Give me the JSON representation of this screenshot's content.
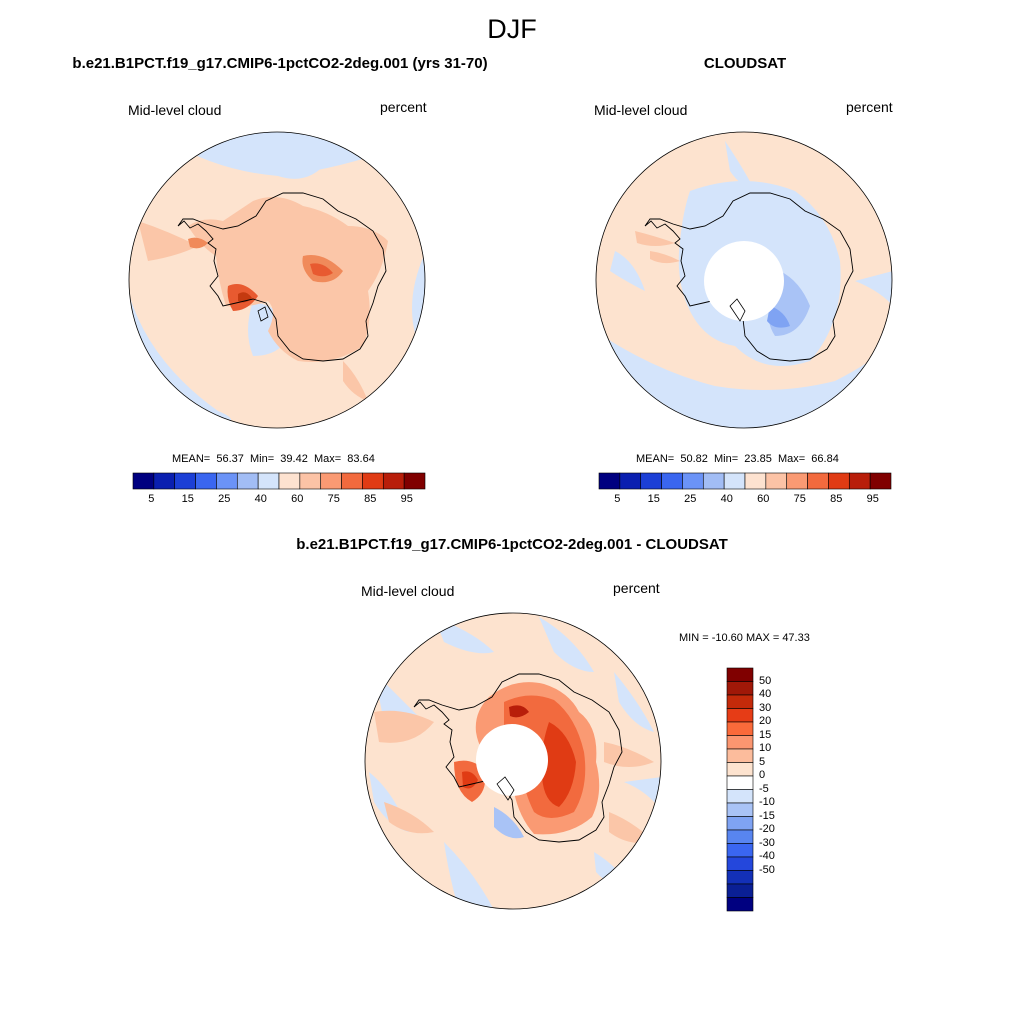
{
  "figure": {
    "season": "DJF"
  },
  "panels": [
    {
      "title": "b.e21.B1PCT.f19_g17.CMIP6-1pctCO2-2deg.001 (yrs 31-70)",
      "left_label": "Mid-level cloud",
      "right_label": "percent",
      "stats": {
        "mean_label": "MEAN=",
        "mean": "56.37",
        "min_label": "Min=",
        "min": "39.42",
        "max_label": "Max=",
        "max": "83.64"
      },
      "has_pole_hole": false
    },
    {
      "title": "CLOUDSAT",
      "left_label": "Mid-level cloud",
      "right_label": "percent",
      "stats": {
        "mean_label": "MEAN=",
        "mean": "50.82",
        "min_label": "Min=",
        "min": "23.85",
        "max_label": "Max=",
        "max": "66.84"
      },
      "has_pole_hole": true
    },
    {
      "title": "b.e21.B1PCT.f19_g17.CMIP6-1pctCO2-2deg.001 - CLOUDSAT",
      "left_label": "Mid-level cloud",
      "right_label": "percent",
      "stats_text": "MIN = -10.60 MAX =  47.33",
      "has_pole_hole": true
    }
  ],
  "colorbar_abs": {
    "colors": [
      "#000080",
      "#0a1fb0",
      "#1c3fd6",
      "#3a66f0",
      "#6b93f7",
      "#a2bdf5",
      "#d4e4fb",
      "#fde2d0",
      "#fcc3a6",
      "#fa9a73",
      "#f26a3e",
      "#e03b14",
      "#b81e0a",
      "#800000"
    ],
    "tick_labels": [
      "5",
      "15",
      "25",
      "40",
      "60",
      "75",
      "85",
      "95"
    ]
  },
  "colorbar_diff": {
    "colors_top_to_bottom": [
      "#800000",
      "#a01808",
      "#c42a0a",
      "#e63c16",
      "#fa6a3a",
      "#fb9670",
      "#fcbc9c",
      "#fde3cf",
      "#ffffff",
      "#d4e4fb",
      "#a9c3f6",
      "#7fa3f3",
      "#5885f0",
      "#3a66f0",
      "#2447dc",
      "#1330b8",
      "#0a1f95",
      "#000080"
    ],
    "tick_labels": [
      "50",
      "40",
      "30",
      "20",
      "15",
      "10",
      "5",
      "0",
      "-5",
      "-10",
      "-15",
      "-20",
      "-30",
      "-40",
      "-50"
    ]
  },
  "colors": {
    "ocean_light_pink": "#fde3cf",
    "light_blue": "#d4e4fb",
    "medium_pink": "#fbb99b",
    "red": "#e85a30",
    "dark_red": "#c43a10",
    "blue": "#8eaaf2",
    "coast": "#000000"
  }
}
